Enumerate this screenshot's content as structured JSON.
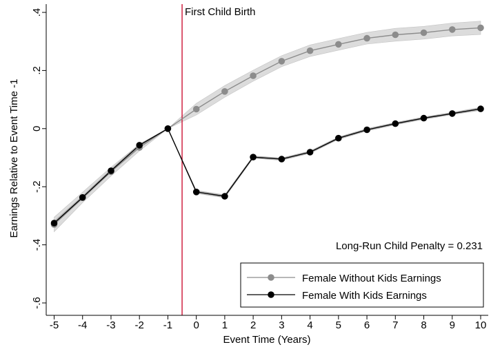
{
  "chart_data": {
    "type": "line",
    "xlabel": "Event Time (Years)",
    "ylabel": "Earnings Relative to Event Time -1",
    "xlim": [
      -5,
      10
    ],
    "ylim": [
      -0.6,
      0.4
    ],
    "x_ticks": [
      -5,
      -4,
      -3,
      -2,
      -1,
      0,
      1,
      2,
      3,
      4,
      5,
      6,
      7,
      8,
      9,
      10
    ],
    "x_tick_labels": [
      "-5",
      "-4",
      "-3",
      "-2",
      "-1",
      "0",
      "1",
      "2",
      "3",
      "4",
      "5",
      "6",
      "7",
      "8",
      "9",
      "10"
    ],
    "y_ticks": [
      0.4,
      0.2,
      0,
      -0.2,
      -0.4,
      -0.6
    ],
    "y_tick_labels": [
      ".4",
      ".2",
      "0",
      "-.2",
      "-.4",
      "-.6"
    ],
    "grid": false,
    "legend_position": "bottom-right",
    "vertical_line": {
      "x": -0.5,
      "color": "#cc1133",
      "label": "First Child Birth"
    },
    "annotation": "Long-Run Child Penalty = 0.231",
    "x": [
      -5,
      -4,
      -3,
      -2,
      -1,
      0,
      1,
      2,
      3,
      4,
      5,
      6,
      7,
      8,
      9,
      10
    ],
    "series": [
      {
        "name": "Female Without Kids Earnings",
        "color": "#8c8c8c",
        "values": [
          -0.33,
          -0.237,
          -0.148,
          -0.065,
          0.0,
          0.067,
          0.128,
          0.182,
          0.232,
          0.268,
          0.29,
          0.311,
          0.323,
          0.33,
          0.341,
          0.347
        ],
        "ci_half_width": [
          0.025,
          0.018,
          0.015,
          0.012,
          0.0,
          0.02,
          0.02,
          0.019,
          0.019,
          0.02,
          0.02,
          0.02,
          0.022,
          0.022,
          0.022,
          0.023
        ]
      },
      {
        "name": "Female With Kids Earnings",
        "color": "#000000",
        "values": [
          -0.325,
          -0.237,
          -0.145,
          -0.057,
          0.0,
          -0.218,
          -0.233,
          -0.098,
          -0.105,
          -0.081,
          -0.033,
          -0.004,
          0.017,
          0.036,
          0.052,
          0.068
        ],
        "ci_half_width": [
          0.006,
          0.005,
          0.005,
          0.004,
          0.0,
          0.005,
          0.005,
          0.004,
          0.004,
          0.004,
          0.004,
          0.004,
          0.004,
          0.004,
          0.004,
          0.005
        ]
      }
    ]
  }
}
